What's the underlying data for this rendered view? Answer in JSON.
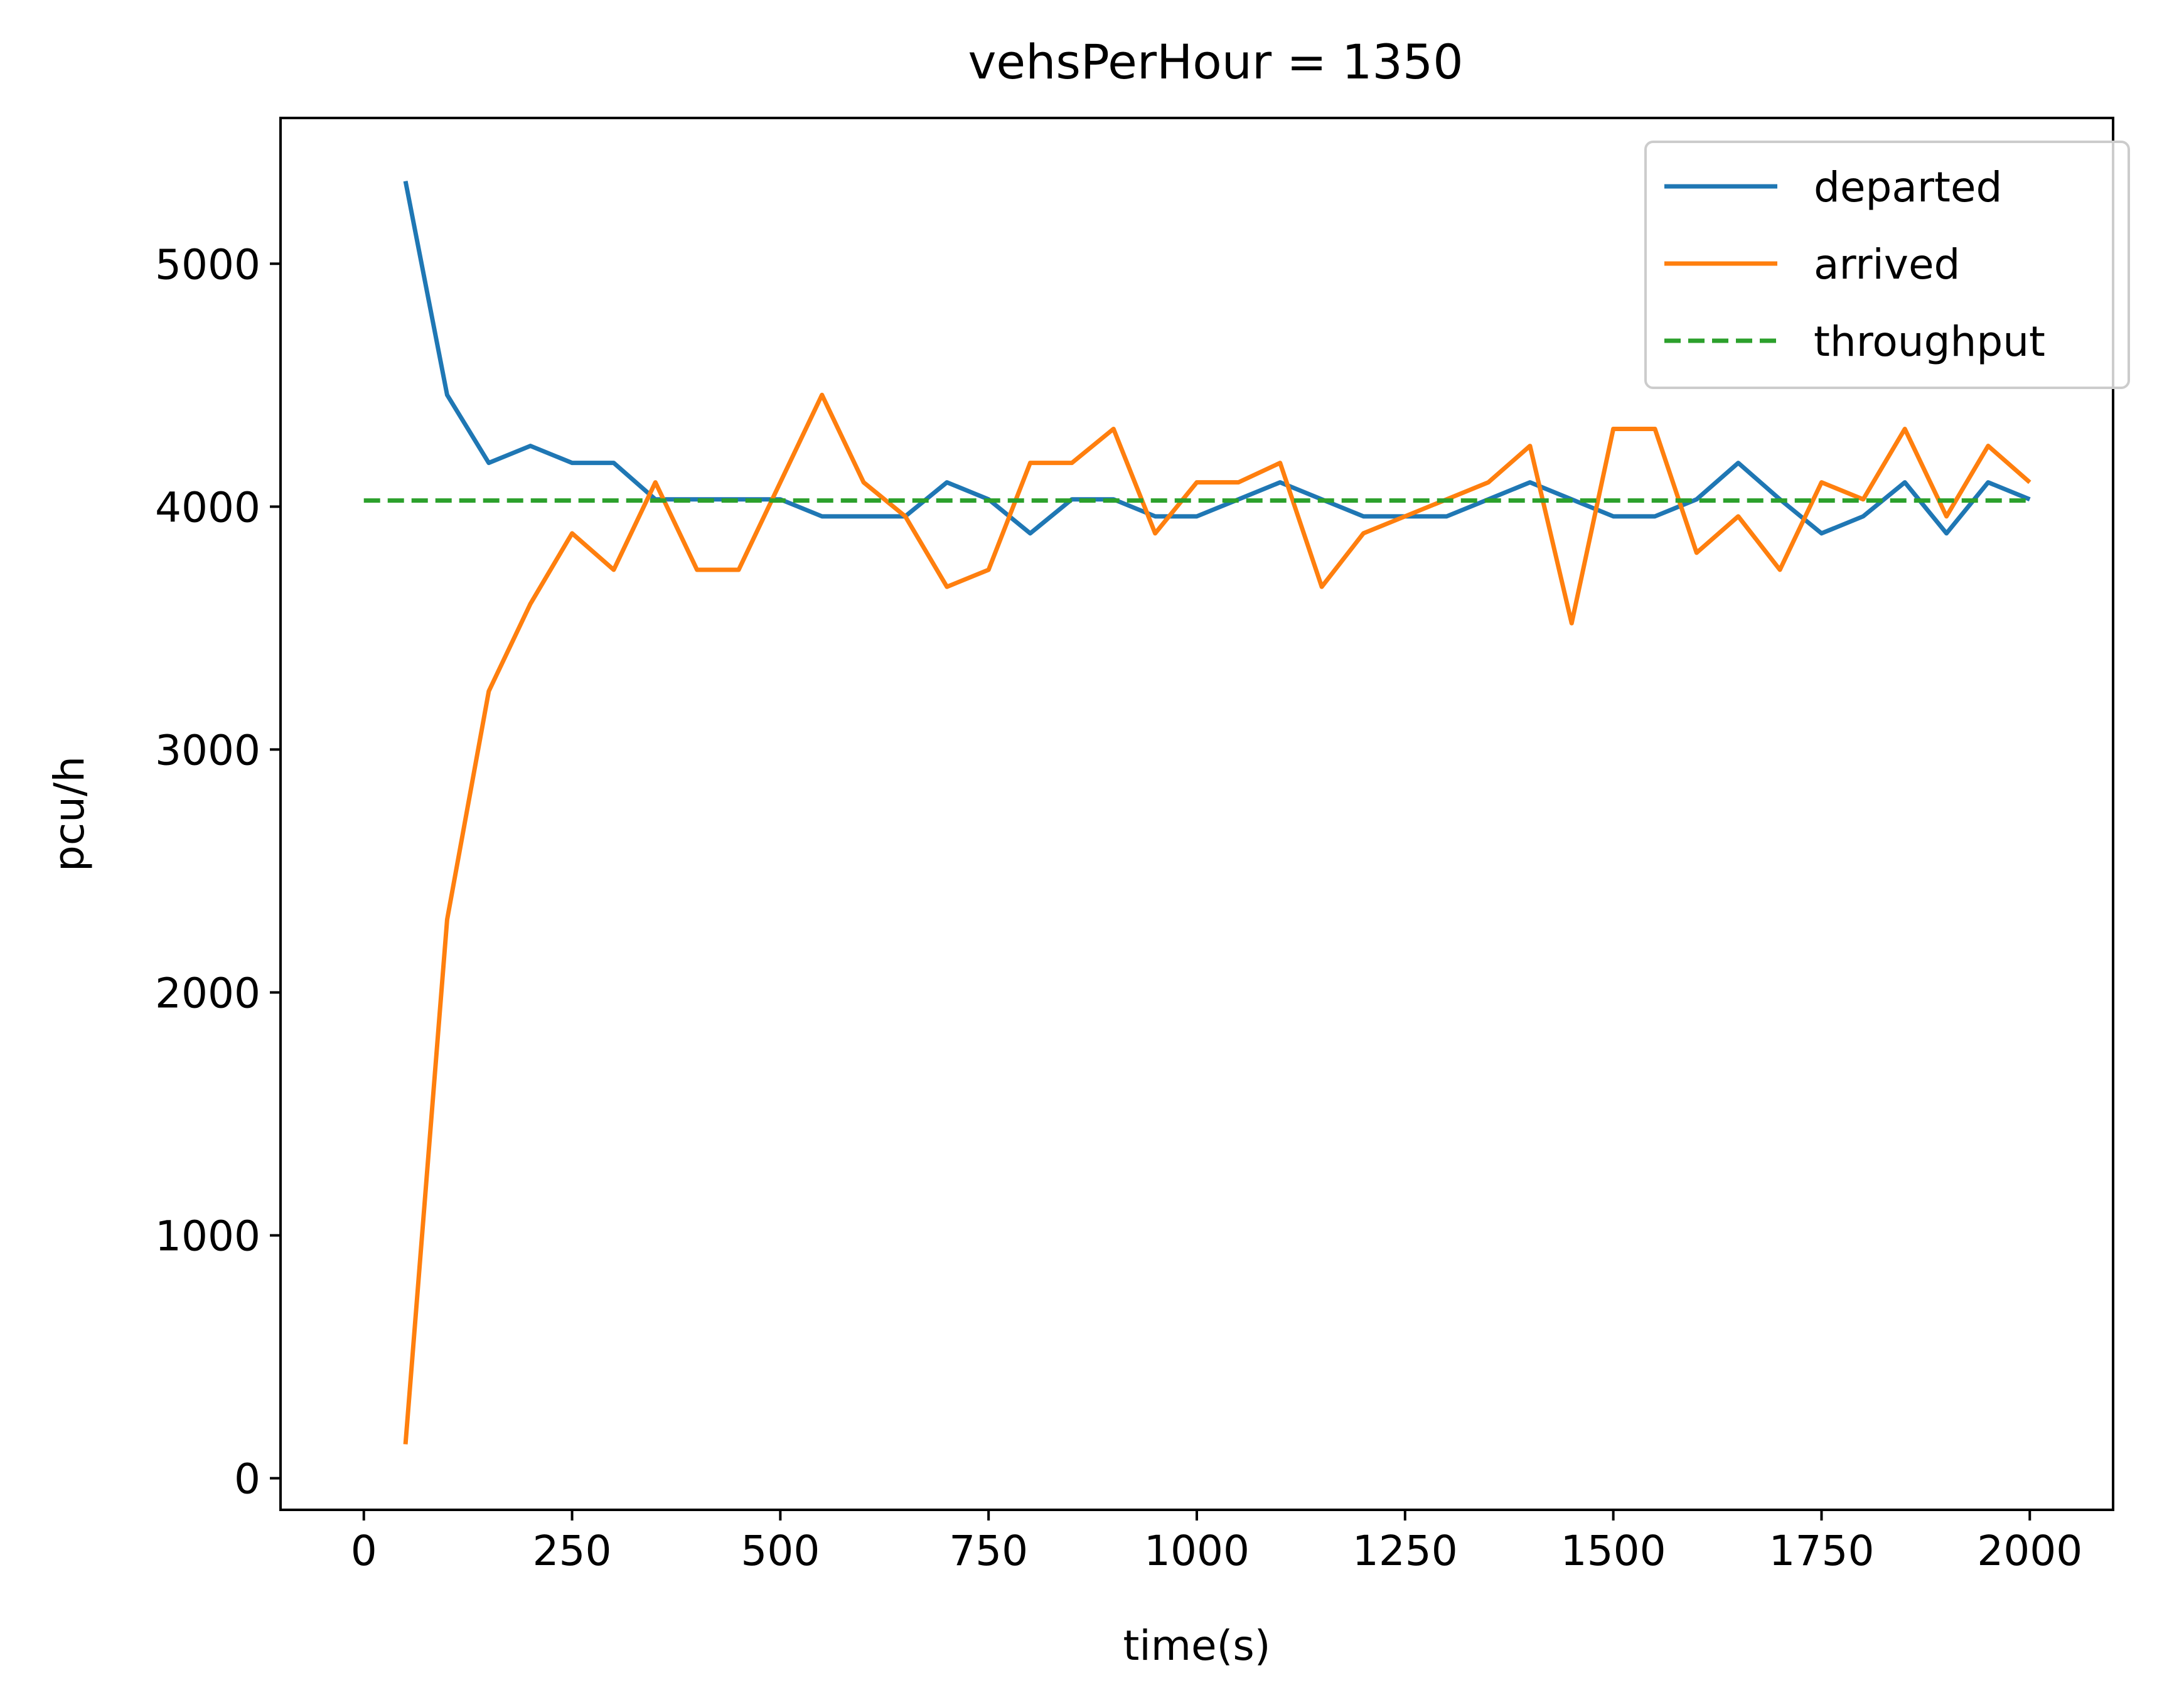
{
  "chart_data": {
    "type": "line",
    "title": "vehsPerHour = 1350",
    "xlabel": "time(s)",
    "ylabel": "pcu/h",
    "xlim": [
      -100,
      2100
    ],
    "ylim": [
      -130,
      5600
    ],
    "xticks": [
      0,
      250,
      500,
      750,
      1000,
      1250,
      1500,
      1750,
      2000
    ],
    "yticks": [
      0,
      1000,
      2000,
      3000,
      4000,
      5000
    ],
    "grid": false,
    "legend": "top-right",
    "x": [
      50,
      100,
      150,
      200,
      250,
      300,
      350,
      400,
      450,
      500,
      550,
      600,
      650,
      700,
      750,
      800,
      850,
      900,
      950,
      1000,
      1050,
      1100,
      1150,
      1200,
      1250,
      1300,
      1350,
      1400,
      1450,
      1500,
      1550,
      1600,
      1650,
      1700,
      1750,
      1800,
      1850,
      1900,
      1950,
      2000
    ],
    "series": [
      {
        "name": "departed",
        "color": "#1f77b4",
        "style": "solid",
        "values": [
          5340,
          4460,
          4180,
          4250,
          4180,
          4180,
          4030,
          4030,
          4030,
          4030,
          3960,
          3960,
          3960,
          4100,
          4030,
          3890,
          4030,
          4030,
          3960,
          3960,
          4030,
          4100,
          4030,
          3960,
          3960,
          3960,
          4030,
          4100,
          4030,
          3960,
          3960,
          4030,
          4180,
          4030,
          3890,
          3960,
          4100,
          3890,
          4100,
          4030
        ]
      },
      {
        "name": "arrived",
        "color": "#ff7f0e",
        "style": "solid",
        "values": [
          140,
          2300,
          3240,
          3600,
          3890,
          3740,
          4100,
          3740,
          3740,
          4100,
          4460,
          4100,
          3960,
          3670,
          3740,
          4180,
          4180,
          4320,
          3890,
          4100,
          4100,
          4180,
          3670,
          3890,
          3960,
          4030,
          4100,
          4250,
          3520,
          4320,
          4320,
          3810,
          3960,
          3740,
          4100,
          4030,
          4320,
          3960,
          4250,
          4100
        ]
      },
      {
        "name": "throughput",
        "color": "#2ca02c",
        "style": "dashed",
        "x": [
          0,
          2000
        ],
        "values": [
          4025,
          4025
        ]
      }
    ]
  }
}
